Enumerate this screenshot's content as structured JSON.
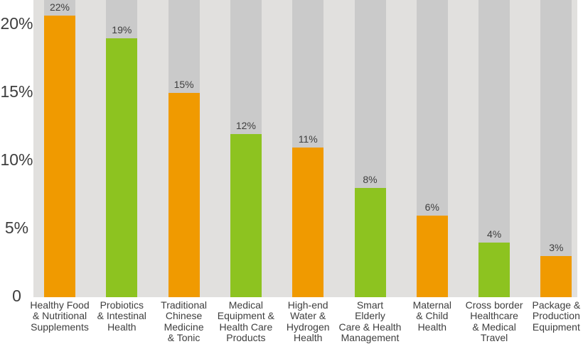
{
  "chart_data": {
    "type": "bar",
    "title": "",
    "xlabel": "",
    "ylabel": "",
    "unit": "%",
    "categories": [
      "Healthy Food\n& Nutritional\nSupplements",
      "Probiotics\n& Intestinal\nHealth",
      "Traditional\nChinese\nMedicine\n& Tonic",
      "Medical\nEquipment &\nHealth Care\nProducts",
      "High-end\nWater &\nHydrogen\nHealth",
      "Smart\nElderly\nCare & Health\nManagement",
      "Maternal\n& Child\nHealth",
      "Cross border\nHealthcare\n& Medical\nTravel",
      "Package &\nProduction\nEquipment"
    ],
    "values": [
      22,
      19,
      15,
      12,
      11,
      8,
      6,
      4,
      3
    ],
    "value_labels": [
      "22%",
      "19%",
      "15%",
      "12%",
      "11%",
      "8%",
      "6%",
      "4%",
      "3%"
    ],
    "bar_colors": [
      "#F09A00",
      "#8DC320",
      "#F09A00",
      "#8DC320",
      "#F09A00",
      "#8DC320",
      "#F09A00",
      "#8DC320",
      "#F09A00"
    ],
    "y_axis": {
      "tick_labels": [
        "20%",
        "15%",
        "10%",
        "5%",
        "0"
      ],
      "tick_values": [
        20,
        15,
        10,
        5,
        0
      ],
      "range": [
        0,
        21.8
      ]
    },
    "grid": false,
    "legend": false,
    "colors": {
      "orange": "#F09A00",
      "green": "#8DC320",
      "track": "#CACACA",
      "plot_background": "#E1E0DE",
      "text": "#3E3E3E"
    }
  }
}
